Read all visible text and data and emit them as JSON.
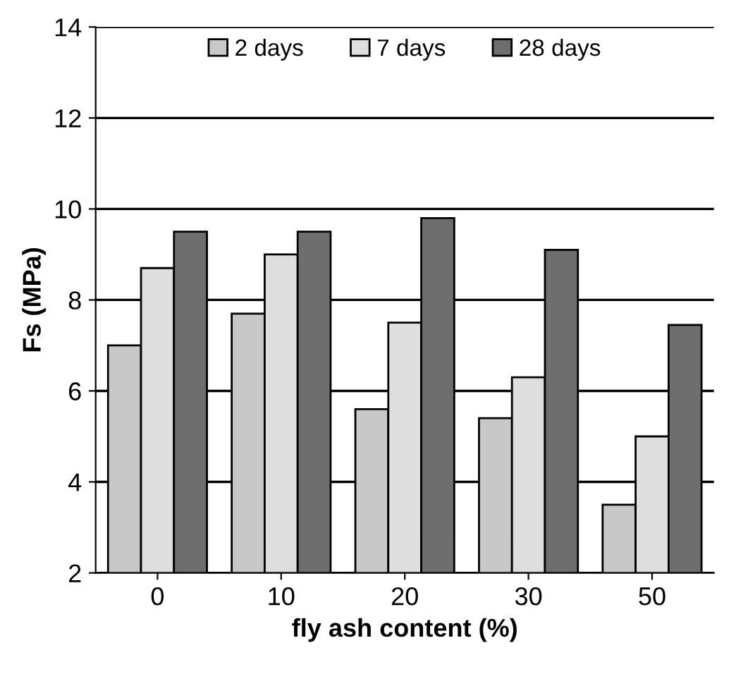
{
  "chart_data": {
    "type": "bar",
    "xlabel": "fly ash content (%)",
    "ylabel": "Fs (MPa)",
    "categories": [
      "0",
      "10",
      "20",
      "30",
      "50"
    ],
    "series": [
      {
        "name": "2 days",
        "color": "#c8c8c8",
        "values": [
          7.0,
          7.7,
          5.6,
          5.4,
          3.5
        ]
      },
      {
        "name": "7 days",
        "color": "#dedede",
        "values": [
          8.7,
          9.0,
          7.5,
          6.3,
          5.0
        ]
      },
      {
        "name": "28 days",
        "color": "#6e6e6e",
        "values": [
          9.5,
          9.5,
          9.8,
          9.1,
          7.45
        ]
      }
    ],
    "ylim": [
      2,
      14
    ],
    "yticks": [
      2,
      4,
      6,
      8,
      10,
      12,
      14
    ],
    "grid": "y",
    "legend": "top"
  }
}
